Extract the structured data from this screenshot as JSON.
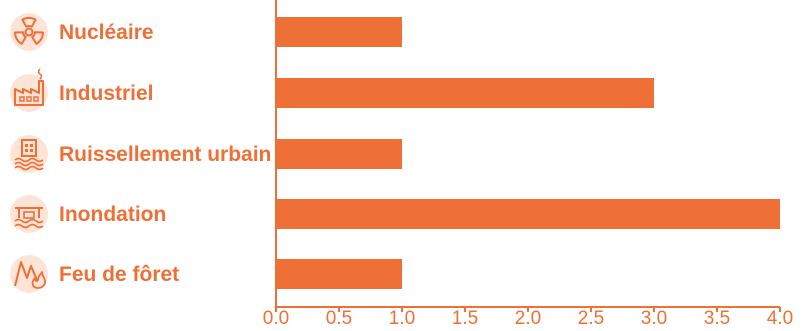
{
  "chart_data": {
    "type": "bar",
    "orientation": "horizontal",
    "title": "",
    "xlabel": "",
    "ylabel": "",
    "categories": [
      {
        "label": "Nucléaire",
        "icon": "radiation-icon"
      },
      {
        "label": "Industriel",
        "icon": "factory-icon"
      },
      {
        "label": "Ruissellement urbain",
        "icon": "urban-runoff-icon"
      },
      {
        "label": "Inondation",
        "icon": "flood-icon"
      },
      {
        "label": "Feu de fôret",
        "icon": "forest-fire-icon"
      }
    ],
    "values": [
      1,
      3,
      1,
      4,
      1
    ],
    "xlim": [
      0,
      4
    ],
    "xticks": [
      "0.0",
      "0.5",
      "1.0",
      "1.5",
      "2.0",
      "2.5",
      "3.0",
      "3.5",
      "4.0"
    ],
    "grid": false,
    "legend": "none",
    "colors": {
      "bar": "#ef7036",
      "axis": "#ef7036",
      "label": "#ef7036"
    }
  }
}
